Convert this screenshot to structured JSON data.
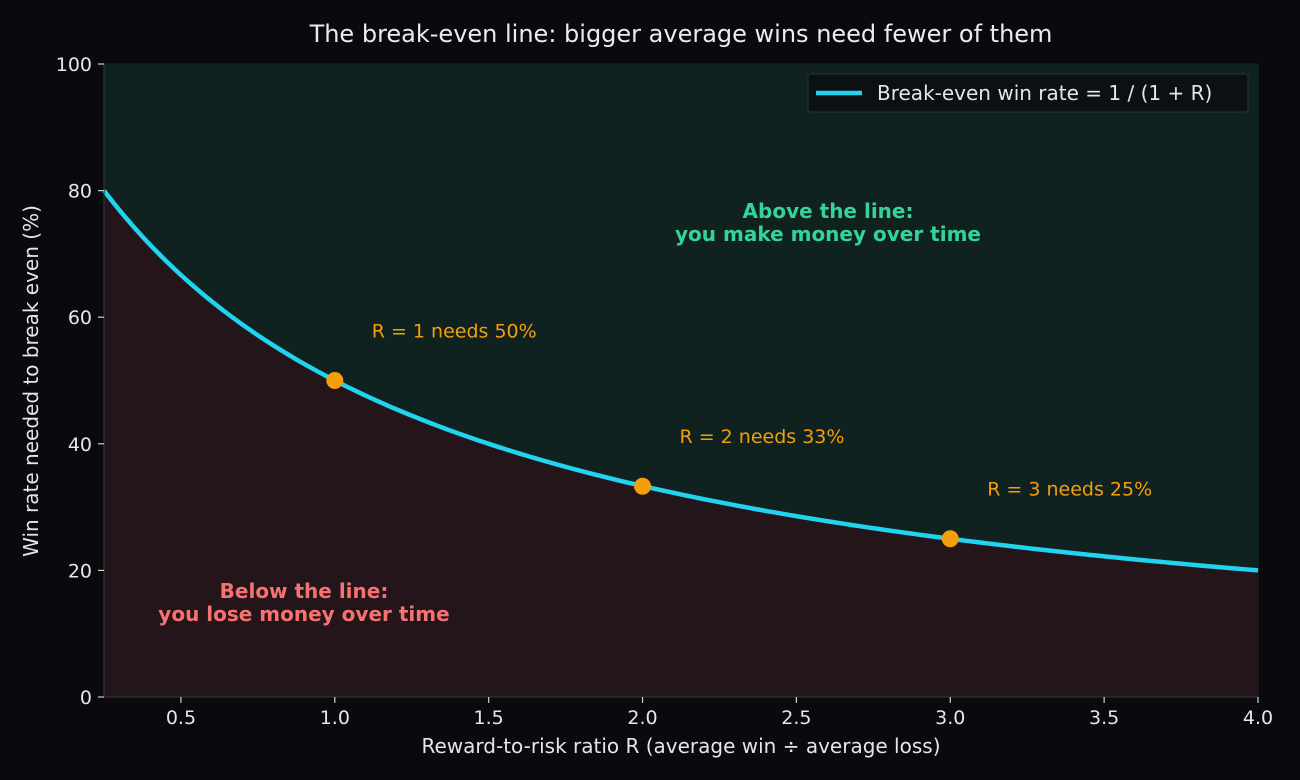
{
  "chart_data": {
    "type": "line",
    "title": "The break-even line: bigger average wins need fewer of them",
    "xlabel": "Reward-to-risk ratio R  (average win ÷ average loss)",
    "ylabel": "Win rate needed to break even (%)",
    "xlim": [
      0.25,
      4.0
    ],
    "ylim": [
      0,
      100
    ],
    "x_ticks": [
      "0.5",
      "1.0",
      "1.5",
      "2.0",
      "2.5",
      "3.0",
      "3.5",
      "4.0"
    ],
    "y_ticks": [
      "0",
      "20",
      "40",
      "60",
      "80",
      "100"
    ],
    "grid": true,
    "legend_position": "top-right",
    "series": [
      {
        "name": "Break-even win rate = 1 / (1 + R)",
        "color": "#22d3ee",
        "x": [
          0.25,
          0.3,
          0.4,
          0.5,
          0.6,
          0.7,
          0.8,
          0.9,
          1.0,
          1.25,
          1.5,
          1.75,
          2.0,
          2.25,
          2.5,
          2.75,
          3.0,
          3.25,
          3.5,
          3.75,
          4.0
        ],
        "y": [
          80.0,
          76.9,
          71.4,
          66.7,
          62.5,
          58.8,
          55.6,
          52.6,
          50.0,
          44.4,
          40.0,
          36.4,
          33.3,
          30.8,
          28.6,
          26.7,
          25.0,
          23.5,
          22.2,
          21.1,
          20.0
        ]
      }
    ],
    "highlight_points": [
      {
        "x": 1.0,
        "y": 50.0,
        "label": "R = 1  needs 50%"
      },
      {
        "x": 2.0,
        "y": 33.3,
        "label": "R = 2  needs 33%"
      },
      {
        "x": 3.0,
        "y": 25.0,
        "label": "R = 3  needs 25%"
      }
    ],
    "regions": {
      "above": {
        "line1": "Above the line:",
        "line2": "you make money over time",
        "color": "#34d399",
        "fill": "#0f2220"
      },
      "below": {
        "line1": "Below the line:",
        "line2": "you lose money over time",
        "color": "#f87171",
        "fill": "#24151b"
      }
    },
    "colors": {
      "background": "#0a0a0e",
      "highlight": "#f59e0b",
      "grid": "#1c2a2e"
    }
  }
}
